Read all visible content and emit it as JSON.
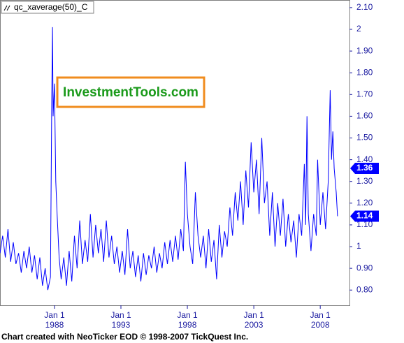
{
  "chart_data": {
    "type": "line",
    "x": [
      1983.9,
      1984.1,
      1984.3,
      1984.5,
      1984.7,
      1984.9,
      1985.1,
      1985.3,
      1985.5,
      1985.7,
      1985.9,
      1986.1,
      1986.3,
      1986.5,
      1986.7,
      1986.9,
      1987.1,
      1987.3,
      1987.5,
      1987.7,
      1987.8,
      1987.85,
      1987.9,
      1988.0,
      1988.1,
      1988.2,
      1988.35,
      1988.5,
      1988.7,
      1988.9,
      1989.1,
      1989.3,
      1989.5,
      1989.7,
      1989.9,
      1990.1,
      1990.3,
      1990.5,
      1990.7,
      1990.9,
      1991.1,
      1991.3,
      1991.5,
      1991.7,
      1991.9,
      1992.1,
      1992.3,
      1992.5,
      1992.7,
      1992.9,
      1993.1,
      1993.3,
      1993.5,
      1993.7,
      1993.9,
      1994.1,
      1994.3,
      1994.5,
      1994.7,
      1994.9,
      1995.1,
      1995.3,
      1995.5,
      1995.7,
      1995.9,
      1996.1,
      1996.3,
      1996.5,
      1996.7,
      1996.9,
      1997.1,
      1997.3,
      1997.5,
      1997.7,
      1997.85,
      1998.0,
      1998.2,
      1998.4,
      1998.6,
      1998.8,
      1999.0,
      1999.2,
      1999.4,
      1999.6,
      1999.8,
      2000.0,
      2000.2,
      2000.4,
      2000.6,
      2000.8,
      2001.0,
      2001.2,
      2001.4,
      2001.6,
      2001.8,
      2002.0,
      2002.2,
      2002.4,
      2002.6,
      2002.8,
      2003.0,
      2003.2,
      2003.4,
      2003.6,
      2003.8,
      2004.0,
      2004.2,
      2004.4,
      2004.6,
      2004.8,
      2005.0,
      2005.2,
      2005.4,
      2005.6,
      2005.8,
      2006.0,
      2006.2,
      2006.4,
      2006.6,
      2006.8,
      2006.9,
      2007.0,
      2007.1,
      2007.3,
      2007.5,
      2007.7,
      2007.8,
      2008.0,
      2008.2,
      2008.4,
      2008.6,
      2008.75,
      2008.85,
      2008.95,
      2009.05,
      2009.2,
      2009.3
    ],
    "series": [
      {
        "name": "qc_xaverage(50)_C",
        "color": "#0000ff",
        "values": [
          0.97,
          1.05,
          0.95,
          1.08,
          0.93,
          1.02,
          0.92,
          0.97,
          0.88,
          0.98,
          0.9,
          1.0,
          0.88,
          0.96,
          0.85,
          0.95,
          0.82,
          0.9,
          0.8,
          0.86,
          1.7,
          2.01,
          1.6,
          1.75,
          1.3,
          1.15,
          0.95,
          0.85,
          0.95,
          0.82,
          0.98,
          0.84,
          1.05,
          0.9,
          1.12,
          0.92,
          1.03,
          0.93,
          1.15,
          0.95,
          1.1,
          0.97,
          1.08,
          0.93,
          1.12,
          0.95,
          1.05,
          0.92,
          1.0,
          0.88,
          0.98,
          0.87,
          1.08,
          0.9,
          0.98,
          0.86,
          0.96,
          0.84,
          0.97,
          0.87,
          0.96,
          0.9,
          1.0,
          0.88,
          0.97,
          0.9,
          1.02,
          0.92,
          1.03,
          0.93,
          1.05,
          0.94,
          1.08,
          0.98,
          1.39,
          1.15,
          1.0,
          0.92,
          1.25,
          1.05,
          0.95,
          1.05,
          0.9,
          1.08,
          0.93,
          1.03,
          0.85,
          1.1,
          0.95,
          1.07,
          1.0,
          1.18,
          1.05,
          1.25,
          1.12,
          1.3,
          1.1,
          1.35,
          1.18,
          1.48,
          1.25,
          1.4,
          1.15,
          1.5,
          1.2,
          1.3,
          1.05,
          1.25,
          1.0,
          1.2,
          1.05,
          1.22,
          1.0,
          1.15,
          1.02,
          1.12,
          0.95,
          1.15,
          1.05,
          1.38,
          1.1,
          1.6,
          1.15,
          0.98,
          1.15,
          1.05,
          1.4,
          1.1,
          1.25,
          1.08,
          1.3,
          1.72,
          1.4,
          1.53,
          1.36,
          1.25,
          1.14
        ]
      }
    ],
    "xlim": [
      1983.9,
      2010.2
    ],
    "xticks": [
      {
        "value": 1988,
        "label": [
          "Jan 1",
          "1988"
        ]
      },
      {
        "value": 1993,
        "label": [
          "Jan 1",
          "1993"
        ]
      },
      {
        "value": 1998,
        "label": [
          "Jan 1",
          "1998"
        ]
      },
      {
        "value": 2003,
        "label": [
          "Jan 1",
          "2003"
        ]
      },
      {
        "value": 2008,
        "label": [
          "Jan 1",
          "2008"
        ]
      }
    ],
    "ylim": [
      0.73,
      2.135
    ],
    "yticks": [
      {
        "value": 0.8,
        "label": "0.80"
      },
      {
        "value": 0.9,
        "label": "0.90"
      },
      1,
      {
        "value": 1.1,
        "label": "1.10"
      },
      {
        "value": 1.2,
        "label": "1.20"
      },
      {
        "value": 1.3,
        "label": "1.30"
      },
      {
        "value": 1.4,
        "label": "1.40"
      },
      {
        "value": 1.5,
        "label": "1.50"
      },
      {
        "value": 1.6,
        "label": "1.60"
      },
      {
        "value": 1.7,
        "label": "1.70"
      },
      {
        "value": 1.8,
        "label": "1.80"
      },
      {
        "value": 1.9,
        "label": "1.90"
      },
      2,
      {
        "value": 2.1,
        "label": "2.10"
      }
    ],
    "markers": [
      1.36,
      1.14
    ],
    "watermark": "InvestmentTools.com",
    "footer": "Chart created with NeoTicker EOD © 1998-2007 TickQuest Inc."
  }
}
